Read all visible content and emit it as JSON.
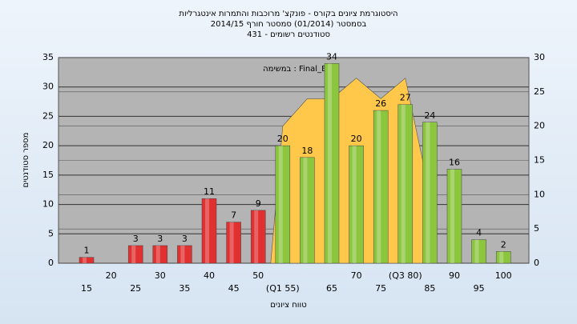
{
  "chart_data": {
    "type": "bar",
    "title": [
      "היסטוגרמת ציונים בקורס - פונקצ' מרוכבות והתמרות אינטגרליות",
      "בסמסטר  (01/2014)  סמסטר חורף  2014/15",
      "סטודנטים רשומים - 431"
    ],
    "xlabel": "טווח ציונים",
    "ylabel": "מספר סטודנטים",
    "categories": [
      "15",
      "20",
      "25",
      "30",
      "35",
      "40",
      "45",
      "50",
      "(Q1 55)",
      null,
      "65",
      "70",
      "75",
      "(Q3 80)",
      "85",
      "90",
      "95",
      "100"
    ],
    "values": [
      1,
      null,
      3,
      3,
      3,
      11,
      7,
      9,
      20,
      18,
      34,
      20,
      26,
      27,
      24,
      16,
      4,
      2
    ],
    "colors": [
      "#e03030",
      "#e03030",
      "#e03030",
      "#e03030",
      "#e03030",
      "#e03030",
      "#e03030",
      "#e03030",
      "#8cc63f",
      "#8cc63f",
      "#8cc63f",
      "#8cc63f",
      "#8cc63f",
      "#8cc63f",
      "#8cc63f",
      "#8cc63f",
      "#8cc63f",
      "#8cc63f"
    ],
    "area": {
      "name": "במשימה : Final_B",
      "color": "#ffc84a",
      "axis": "y2",
      "values": [
        null,
        null,
        null,
        null,
        null,
        null,
        null,
        null,
        20,
        24,
        24,
        27,
        24,
        27,
        10,
        null,
        null,
        null
      ]
    },
    "ylim": [
      0,
      35
    ],
    "yticks": [
      0,
      5,
      10,
      15,
      20,
      25,
      30,
      35
    ],
    "y2lim": [
      0,
      30
    ],
    "y2ticks": [
      0,
      5,
      10,
      15,
      20,
      25,
      30
    ],
    "grid": true
  }
}
